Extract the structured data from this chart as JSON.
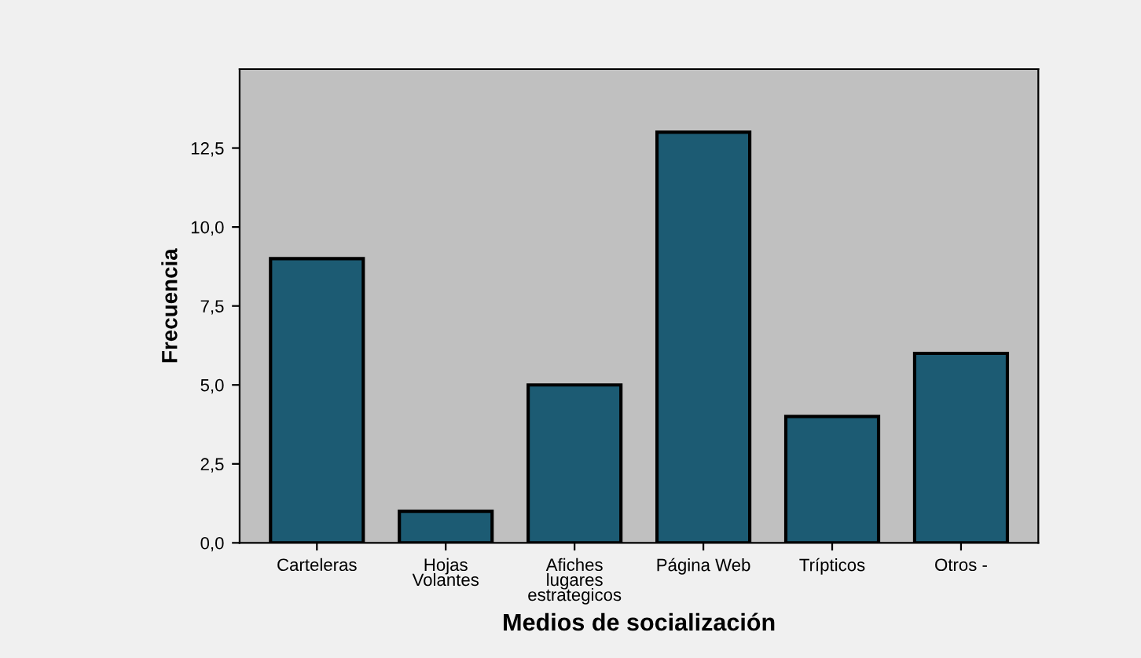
{
  "chart_data": {
    "type": "bar",
    "xlabel": "Medios de socialización",
    "ylabel": "Frecuencia",
    "categories": [
      "Carteleras",
      "Hojas\nVolantes",
      "Afiches\nlugares\nestrategicos",
      "Página Web",
      "Trípticos",
      "Otros -"
    ],
    "values": [
      9,
      1,
      5,
      13,
      4,
      6
    ],
    "color": "#1c5b73",
    "ylim": [
      0,
      15
    ],
    "yticks": [
      {
        "value": 0,
        "label": "0,0"
      },
      {
        "value": 2.5,
        "label": "2,5"
      },
      {
        "value": 5,
        "label": "5,0"
      },
      {
        "value": 7.5,
        "label": "7,5"
      },
      {
        "value": 10,
        "label": "10,0"
      },
      {
        "value": 12.5,
        "label": "12,5"
      }
    ],
    "grid": false
  }
}
